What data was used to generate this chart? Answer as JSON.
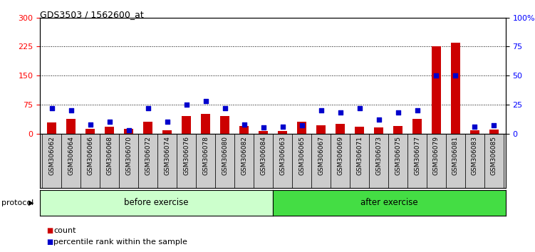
{
  "title": "GDS3503 / 1562600_at",
  "categories": [
    "GSM306062",
    "GSM306064",
    "GSM306066",
    "GSM306068",
    "GSM306070",
    "GSM306072",
    "GSM306074",
    "GSM306076",
    "GSM306078",
    "GSM306080",
    "GSM306082",
    "GSM306084",
    "GSM306063",
    "GSM306065",
    "GSM306067",
    "GSM306069",
    "GSM306071",
    "GSM306073",
    "GSM306075",
    "GSM306077",
    "GSM306079",
    "GSM306081",
    "GSM306083",
    "GSM306085"
  ],
  "counts": [
    28,
    38,
    12,
    18,
    12,
    30,
    8,
    45,
    50,
    45,
    20,
    6,
    6,
    30,
    22,
    25,
    18,
    15,
    20,
    38,
    225,
    235,
    8,
    10
  ],
  "percentile": [
    22,
    20,
    8,
    10,
    3,
    22,
    10,
    25,
    28,
    22,
    8,
    5,
    6,
    7,
    20,
    18,
    22,
    12,
    18,
    20,
    50,
    50,
    6,
    7
  ],
  "before_count": 12,
  "after_count": 12,
  "left_ylim": [
    0,
    300
  ],
  "right_ylim": [
    0,
    100
  ],
  "left_yticks": [
    0,
    75,
    150,
    225,
    300
  ],
  "right_yticks": [
    0,
    25,
    50,
    75,
    100
  ],
  "right_yticklabels": [
    "0",
    "25",
    "50",
    "75",
    "100%"
  ],
  "bar_color": "#cc0000",
  "dot_color": "#0000cc",
  "before_color": "#ccffcc",
  "after_color": "#44dd44",
  "label_bg_color": "#cccccc",
  "protocol_label": "protocol",
  "before_label": "before exercise",
  "after_label": "after exercise",
  "legend_count": "count",
  "legend_pct": "percentile rank within the sample",
  "plot_bg": "#ffffff"
}
